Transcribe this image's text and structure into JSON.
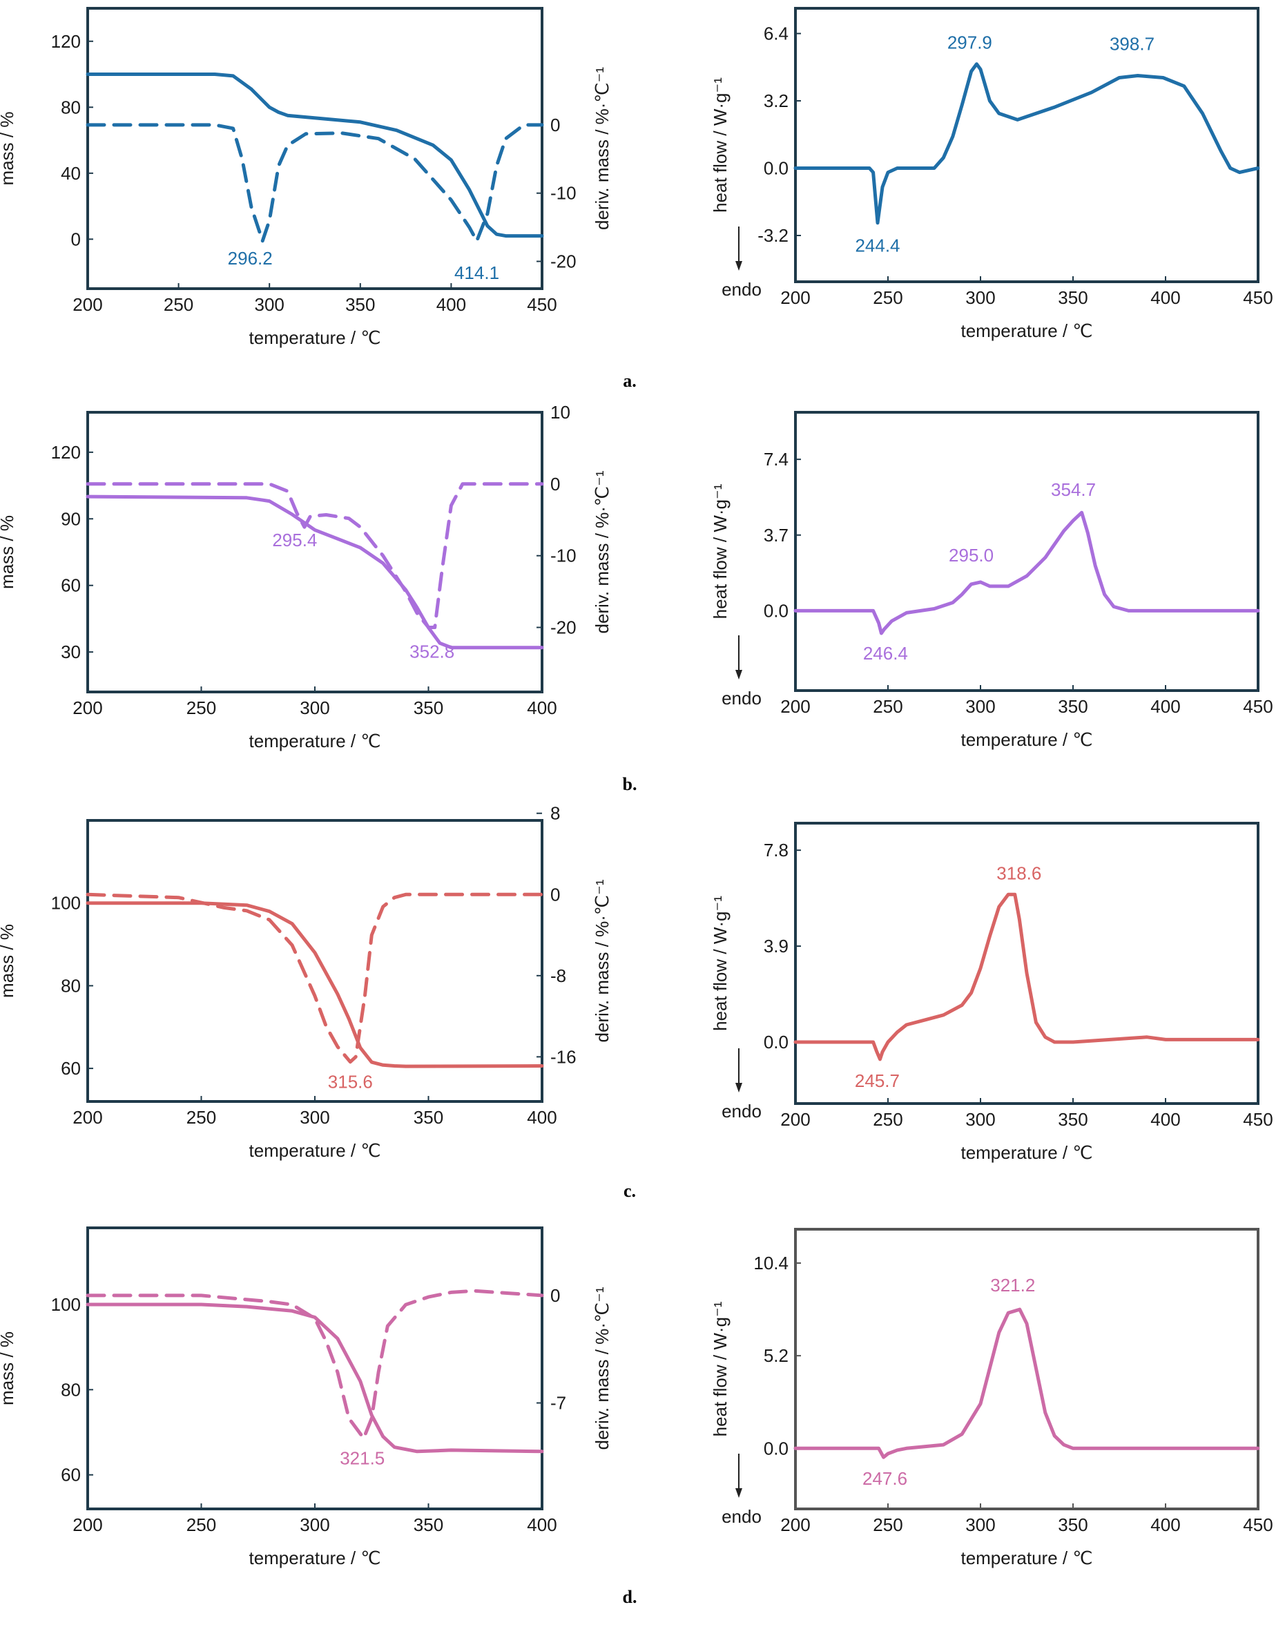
{
  "chart_data": [
    {
      "id": "a-tga",
      "type": "line",
      "panel": "a.",
      "color": "#1f6fa8",
      "xlabel": "temperature / ℃",
      "ylabel": "mass / %",
      "y2label": "deriv. mass / %·℃⁻¹",
      "xlim": [
        200,
        450
      ],
      "xticks": [
        200,
        250,
        300,
        350,
        400,
        450
      ],
      "ylim": [
        -30,
        140
      ],
      "yticks": [
        0,
        40,
        80,
        120
      ],
      "y2lim": [
        -24,
        17.1
      ],
      "y2ticks": [
        -20,
        -10,
        0
      ],
      "series": [
        {
          "role": "mass",
          "dash": false,
          "axis": "y1",
          "x": [
            200,
            270,
            280,
            290,
            300,
            305,
            310,
            330,
            350,
            370,
            390,
            400,
            410,
            420,
            425,
            430,
            450
          ],
          "y": [
            100,
            100,
            99,
            91,
            80,
            77,
            75,
            73,
            71,
            66,
            57,
            48,
            30,
            8,
            3,
            2,
            2
          ]
        },
        {
          "role": "deriv",
          "dash": true,
          "axis": "y2",
          "x": [
            200,
            270,
            280,
            285,
            290,
            296.2,
            300,
            305,
            310,
            320,
            340,
            360,
            380,
            390,
            400,
            410,
            414.1,
            420,
            425,
            430,
            440,
            450
          ],
          "y": [
            0,
            0,
            -0.5,
            -5,
            -12,
            -17,
            -14,
            -6,
            -3,
            -1.3,
            -1.2,
            -2,
            -5,
            -8,
            -11,
            -15,
            -17,
            -13,
            -6,
            -2,
            0,
            0
          ]
        }
      ],
      "annotations": [
        {
          "text": "296.2",
          "x": 296.2,
          "axis": "y2",
          "y": -17,
          "dx": -18,
          "dy": 34
        },
        {
          "text": "414.1",
          "x": 414.1,
          "axis": "y2",
          "y": -17,
          "dx": 0,
          "dy": 55
        }
      ]
    },
    {
      "id": "a-dsc",
      "type": "line",
      "panel": "a.",
      "color": "#1f6fa8",
      "xlabel": "temperature / ℃",
      "ylabel": "heat flow / W·g⁻¹",
      "endo": "endo",
      "xlim": [
        200,
        450
      ],
      "xticks": [
        200,
        250,
        300,
        350,
        400,
        450
      ],
      "ylim": [
        -5.4,
        7.6
      ],
      "yticks": [
        -3.2,
        0.0,
        3.2,
        6.4
      ],
      "ytick_labels": [
        "-3.2",
        "0.0",
        "3.2",
        "6.4"
      ],
      "series": [
        {
          "role": "heat flow",
          "dash": false,
          "x": [
            200,
            240,
            242,
            244.4,
            247,
            250,
            255,
            260,
            275,
            280,
            285,
            290,
            295,
            297.9,
            300,
            305,
            310,
            320,
            340,
            360,
            375,
            385,
            398.7,
            410,
            420,
            430,
            435,
            440,
            450
          ],
          "y": [
            0,
            0,
            -0.2,
            -2.6,
            -0.9,
            -0.2,
            0,
            0,
            0,
            0.5,
            1.5,
            3,
            4.6,
            4.95,
            4.7,
            3.2,
            2.6,
            2.3,
            2.9,
            3.6,
            4.3,
            4.4,
            4.3,
            3.9,
            2.6,
            0.8,
            0,
            -0.2,
            0
          ]
        }
      ],
      "annotations": [
        {
          "text": "297.9",
          "x": 297.9,
          "y": 4.95,
          "dx": -10,
          "dy": -22
        },
        {
          "text": "398.7",
          "x": 398.7,
          "y": 4.3,
          "dx": -45,
          "dy": -40
        },
        {
          "text": "244.4",
          "x": 244.4,
          "y": -2.6,
          "dx": 0,
          "dy": 42
        }
      ]
    },
    {
      "id": "b-tga",
      "type": "line",
      "panel": "b.",
      "color": "#a96fdc",
      "xlabel": "temperature / ℃",
      "ylabel": "mass / %",
      "y2label": "deriv. mass / %·℃⁻¹",
      "xlim": [
        200,
        400
      ],
      "xticks": [
        200,
        250,
        300,
        350,
        400
      ],
      "ylim": [
        12,
        138
      ],
      "yticks": [
        30,
        60,
        90,
        120
      ],
      "y2lim": [
        -29,
        10
      ],
      "y2ticks": [
        -20,
        -10,
        0,
        10
      ],
      "series": [
        {
          "role": "mass",
          "dash": false,
          "axis": "y1",
          "x": [
            200,
            270,
            280,
            290,
            300,
            310,
            320,
            330,
            340,
            345,
            350,
            355,
            360,
            365,
            370,
            400
          ],
          "y": [
            100,
            99.5,
            98,
            92,
            85,
            81,
            77,
            70,
            58,
            50,
            41,
            34,
            32,
            32,
            32,
            32
          ]
        },
        {
          "role": "deriv",
          "dash": true,
          "axis": "y2",
          "x": [
            200,
            280,
            288,
            292,
            295.4,
            298,
            305,
            315,
            320,
            330,
            340,
            345,
            350,
            352.8,
            356,
            360,
            365,
            375,
            400
          ],
          "y": [
            0,
            0,
            -1,
            -4,
            -6,
            -4.5,
            -4.3,
            -4.8,
            -6,
            -10,
            -15,
            -18,
            -20,
            -20,
            -12,
            -3,
            0,
            0,
            0
          ]
        }
      ],
      "annotations": [
        {
          "text": "295.4",
          "x": 295.4,
          "axis": "y2",
          "y": -6,
          "dx": -14,
          "dy": 28
        },
        {
          "text": "352.8",
          "x": 352.8,
          "axis": "y2",
          "y": -20,
          "dx": -4,
          "dy": 44
        }
      ]
    },
    {
      "id": "b-dsc",
      "type": "line",
      "panel": "b.",
      "color": "#a96fdc",
      "xlabel": "temperature / ℃",
      "ylabel": "heat flow / W·g⁻¹",
      "endo": "endo",
      "xlim": [
        200,
        450
      ],
      "xticks": [
        200,
        250,
        300,
        350,
        400,
        450
      ],
      "ylim": [
        -3.9,
        9.7
      ],
      "yticks": [
        0.0,
        3.7,
        7.4
      ],
      "ytick_labels": [
        "0.0",
        "3.7",
        "7.4"
      ],
      "series": [
        {
          "role": "heat flow",
          "dash": false,
          "x": [
            200,
            242,
            245,
            246.4,
            248,
            252,
            260,
            275,
            285,
            290,
            295,
            300,
            305,
            315,
            325,
            335,
            345,
            350,
            354.7,
            358,
            362,
            367,
            372,
            380,
            400,
            450
          ],
          "y": [
            0,
            0,
            -0.6,
            -1.1,
            -0.9,
            -0.5,
            -0.1,
            0.1,
            0.4,
            0.8,
            1.3,
            1.4,
            1.2,
            1.2,
            1.7,
            2.6,
            3.9,
            4.4,
            4.8,
            3.8,
            2.2,
            0.8,
            0.2,
            0,
            0,
            0
          ]
        }
      ],
      "annotations": [
        {
          "text": "295.0",
          "x": 295.0,
          "y": 1.4,
          "dx": 0,
          "dy": -30
        },
        {
          "text": "354.7",
          "x": 354.7,
          "y": 4.8,
          "dx": -12,
          "dy": -24
        },
        {
          "text": "246.4",
          "x": 246.4,
          "y": -1.1,
          "dx": 6,
          "dy": 38
        }
      ]
    },
    {
      "id": "c-tga",
      "type": "line",
      "panel": "c.",
      "color": "#d86464",
      "xlabel": "temperature / ℃",
      "ylabel": "mass / %",
      "y2label": "deriv. mass / %·℃⁻¹",
      "xlim": [
        200,
        400
      ],
      "xticks": [
        200,
        250,
        300,
        350,
        400
      ],
      "ylim": [
        52,
        120
      ],
      "yticks": [
        60,
        80,
        100
      ],
      "y2lim": [
        -20.4,
        7.3
      ],
      "y2ticks": [
        -16,
        -8,
        0,
        8
      ],
      "series": [
        {
          "role": "mass",
          "dash": false,
          "axis": "y1",
          "x": [
            200,
            250,
            270,
            280,
            290,
            300,
            310,
            315,
            320,
            325,
            330,
            335,
            340,
            400
          ],
          "y": [
            100,
            100,
            99.5,
            98,
            95,
            88,
            78,
            72,
            65,
            61.5,
            60.8,
            60.6,
            60.5,
            60.6
          ]
        },
        {
          "role": "deriv",
          "dash": true,
          "axis": "y2",
          "x": [
            200,
            240,
            260,
            270,
            280,
            290,
            300,
            305,
            310,
            315.6,
            318,
            320,
            322,
            325,
            330,
            335,
            340,
            360,
            400
          ],
          "y": [
            0,
            -0.3,
            -1.3,
            -1.6,
            -2.5,
            -5,
            -10,
            -13,
            -15,
            -16.5,
            -16,
            -13,
            -10,
            -4,
            -1.2,
            -0.3,
            0,
            0,
            0
          ]
        }
      ],
      "annotations": [
        {
          "text": "315.6",
          "x": 315.6,
          "axis": "y2",
          "y": -16.5,
          "dx": 0,
          "dy": 38
        }
      ]
    },
    {
      "id": "c-dsc",
      "type": "line",
      "panel": "c.",
      "color": "#d86464",
      "xlabel": "temperature / ℃",
      "ylabel": "heat flow / W·g⁻¹",
      "endo": "endo",
      "xlim": [
        200,
        450
      ],
      "xticks": [
        200,
        250,
        300,
        350,
        400,
        450
      ],
      "ylim": [
        -2.5,
        8.9
      ],
      "yticks": [
        0.0,
        3.9,
        7.8
      ],
      "ytick_labels": [
        "0.0",
        "3.9",
        "7.8"
      ],
      "series": [
        {
          "role": "heat flow",
          "dash": false,
          "x": [
            200,
            242,
            244,
            245.7,
            247,
            250,
            255,
            260,
            270,
            280,
            290,
            295,
            300,
            305,
            310,
            315,
            318.6,
            321,
            325,
            330,
            335,
            340,
            350,
            370,
            390,
            400,
            450
          ],
          "y": [
            0,
            0,
            -0.4,
            -0.7,
            -0.4,
            0,
            0.4,
            0.7,
            0.9,
            1.1,
            1.5,
            2,
            3,
            4.3,
            5.5,
            6.0,
            6.0,
            5,
            2.8,
            0.8,
            0.2,
            0,
            0,
            0.1,
            0.2,
            0.1,
            0.1
          ]
        }
      ],
      "annotations": [
        {
          "text": "318.6",
          "x": 318.6,
          "y": 6.0,
          "dx": 6,
          "dy": -22
        },
        {
          "text": "245.7",
          "x": 245.7,
          "y": -0.7,
          "dx": -4,
          "dy": 40
        }
      ]
    },
    {
      "id": "d-tga",
      "type": "line",
      "panel": "d.",
      "color": "#cc6ba6",
      "xlabel": "temperature / ℃",
      "ylabel": "mass / %",
      "y2label": "deriv. mass / %·℃⁻¹",
      "xlim": [
        200,
        400
      ],
      "xticks": [
        200,
        250,
        300,
        350,
        400
      ],
      "ylim": [
        52,
        118
      ],
      "yticks": [
        60,
        80,
        100
      ],
      "y2lim": [
        -13.9,
        4.4
      ],
      "y2ticks": [
        -7,
        0
      ],
      "series": [
        {
          "role": "mass",
          "dash": false,
          "axis": "y1",
          "x": [
            200,
            250,
            270,
            280,
            290,
            300,
            310,
            320,
            325,
            330,
            335,
            345,
            360,
            400
          ],
          "y": [
            100,
            100,
            99.5,
            99,
            98.5,
            97,
            92,
            82,
            74,
            69,
            66.5,
            65.5,
            65.8,
            65.5
          ]
        },
        {
          "role": "deriv",
          "dash": true,
          "axis": "y2",
          "x": [
            200,
            250,
            280,
            290,
            300,
            305,
            310,
            315,
            321.5,
            325,
            328,
            332,
            340,
            350,
            360,
            370,
            400
          ],
          "y": [
            0,
            0,
            -0.4,
            -0.6,
            -1.5,
            -3,
            -5,
            -8,
            -9.3,
            -8,
            -5,
            -2,
            -0.6,
            -0.1,
            0.2,
            0.3,
            0
          ]
        }
      ],
      "annotations": [
        {
          "text": "321.5",
          "x": 321.5,
          "axis": "y2",
          "y": -9.3,
          "dx": -2,
          "dy": 38
        }
      ]
    },
    {
      "id": "d-dsc",
      "type": "line",
      "panel": "d.",
      "color": "#cc6ba6",
      "xlabel": "temperature / ℃",
      "ylabel": "heat flow / W·g⁻¹",
      "endo": "endo",
      "xlim": [
        200,
        450
      ],
      "xticks": [
        200,
        250,
        300,
        350,
        400,
        450
      ],
      "ylim": [
        -3.4,
        12.3
      ],
      "yticks": [
        0.0,
        5.2,
        10.4
      ],
      "ytick_labels": [
        "0.0",
        "5.2",
        "10.4"
      ],
      "series": [
        {
          "role": "heat flow",
          "dash": false,
          "x": [
            200,
            245,
            247.6,
            250,
            255,
            260,
            280,
            290,
            300,
            305,
            310,
            315,
            321.2,
            325,
            330,
            335,
            340,
            345,
            350,
            400,
            450
          ],
          "y": [
            0,
            0,
            -0.5,
            -0.3,
            -0.1,
            0,
            0.2,
            0.8,
            2.5,
            4.5,
            6.5,
            7.6,
            7.8,
            7.0,
            4.5,
            2.0,
            0.7,
            0.2,
            0,
            0,
            0
          ]
        }
      ],
      "annotations": [
        {
          "text": "321.2",
          "x": 321.2,
          "y": 7.8,
          "dx": -10,
          "dy": -26
        },
        {
          "text": "247.6",
          "x": 247.6,
          "y": -0.5,
          "dx": 2,
          "dy": 40
        }
      ]
    }
  ]
}
